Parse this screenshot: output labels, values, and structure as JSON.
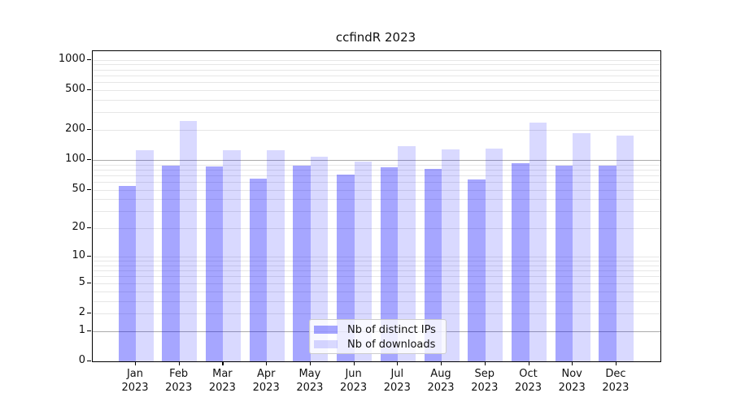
{
  "chart_data": {
    "type": "bar",
    "title": "ccfindR 2023",
    "categories": [
      "Jan",
      "Feb",
      "Mar",
      "Apr",
      "May",
      "Jun",
      "Jul",
      "Aug",
      "Sep",
      "Oct",
      "Nov",
      "Dec"
    ],
    "year_label": "2023",
    "series": [
      {
        "name": "Nb of distinct IPs",
        "color": "rgba(0,0,255,0.35)",
        "values": [
          55,
          88,
          86,
          65,
          88,
          71,
          85,
          81,
          64,
          92,
          88,
          87
        ]
      },
      {
        "name": "Nb of downloads",
        "color": "rgba(0,0,255,0.15)",
        "values": [
          126,
          245,
          124,
          125,
          107,
          97,
          138,
          127,
          130,
          237,
          185,
          174
        ]
      }
    ],
    "y_ticks": [
      0,
      1,
      2,
      5,
      10,
      20,
      50,
      100,
      200,
      500,
      1000
    ],
    "y_scale": "log10(value+1)",
    "ylim": [
      0,
      1200
    ],
    "grid": "on",
    "grid_color": "#e6e6e6",
    "grid_emph_color": "#ababab",
    "grid_emphasized_at": [
      1,
      100
    ],
    "legend_position": "lower center",
    "axis_color": "#000000"
  }
}
